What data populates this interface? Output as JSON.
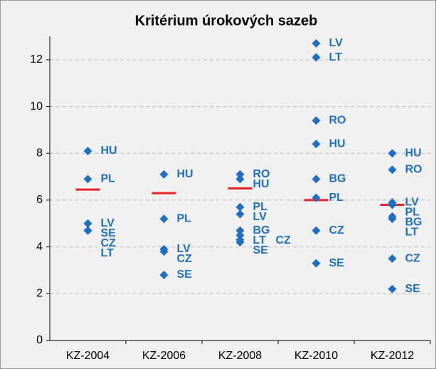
{
  "chart_data": {
    "type": "strip",
    "title": "Kritérium úrokových sazeb",
    "categories": [
      "KZ-2004",
      "KZ-2006",
      "KZ-2008",
      "KZ-2010",
      "KZ-2012"
    ],
    "groups": [
      {
        "labels": [
          "HU",
          "PL",
          "LV",
          "SE",
          "CZ",
          "LT"
        ],
        "values": [
          8.1,
          6.9,
          5.0,
          4.7,
          4.7,
          4.7
        ],
        "reference": 6.45
      },
      {
        "labels": [
          "HU",
          "PL",
          "LV",
          "CZ",
          "SE"
        ],
        "values": [
          7.1,
          5.2,
          3.9,
          3.8,
          2.8
        ],
        "reference": 6.3
      },
      {
        "labels": [
          "RO",
          "HU",
          "PL",
          "LV",
          "BG",
          "LT",
          "CZ",
          "SE"
        ],
        "values": [
          7.1,
          6.9,
          5.7,
          5.4,
          4.7,
          4.5,
          4.3,
          4.2
        ],
        "reference": 6.5
      },
      {
        "labels": [
          "LV",
          "LT",
          "RO",
          "HU",
          "BG",
          "PL",
          "CZ",
          "SE"
        ],
        "values": [
          12.7,
          12.1,
          9.4,
          8.4,
          6.9,
          6.1,
          4.7,
          3.3
        ],
        "reference": 6.0
      },
      {
        "labels": [
          "HU",
          "RO",
          "LV",
          "PL",
          "BG",
          "LT",
          "CZ",
          "SE"
        ],
        "values": [
          8.0,
          7.3,
          5.9,
          5.8,
          5.3,
          5.2,
          3.5,
          2.2
        ],
        "reference": 5.8
      }
    ],
    "color": "#1f6fc0",
    "reference_color": "#e8202a",
    "ylim": [
      0,
      13
    ],
    "yticks": [
      0,
      2,
      4,
      6,
      8,
      10,
      12
    ],
    "grid": true
  }
}
